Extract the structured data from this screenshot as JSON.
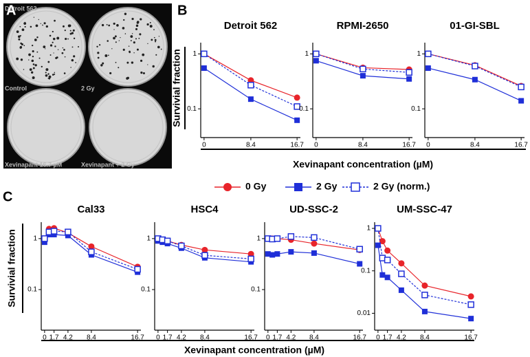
{
  "panel_labels": [
    "A",
    "B",
    "C"
  ],
  "panel_a": {
    "labels": [
      "Detroit 562",
      "Control",
      "2 Gy",
      "Xevinapant 16.7 µM",
      "Xevinapant + 2 Gy"
    ]
  },
  "figure": {
    "b_y_label": "Survivial fraction",
    "b_x_label": "Xevinapant concentration (µM)",
    "c_y_label": "Survivial fraction",
    "c_x_label": "Xevinapant concentration (µM)"
  },
  "chart_data": [
    {
      "type": "line",
      "title": "Detroit 562",
      "log_y": true,
      "x": [
        0,
        8.4,
        16.7
      ],
      "xlim": [
        -0.6,
        17.3
      ],
      "xticks": [
        0,
        8.4,
        16.7
      ],
      "ylim": [
        0.03,
        1.6
      ],
      "yticks": [
        1,
        0.1
      ],
      "series": [
        {
          "name": "0 Gy",
          "color": "#e8242a",
          "marker": "circle",
          "dashed": false,
          "values": [
            1,
            0.33,
            0.16
          ]
        },
        {
          "name": "2 Gy",
          "color": "#1f2fd8",
          "marker": "square",
          "dashed": false,
          "values": [
            0.55,
            0.15,
            0.062
          ]
        },
        {
          "name": "2 Gy (norm.)",
          "color": "#1f2fd8",
          "marker": "open-square",
          "dashed": true,
          "values": [
            1,
            0.27,
            0.11
          ]
        }
      ]
    },
    {
      "type": "line",
      "title": "RPMI-2650",
      "log_y": true,
      "x": [
        0,
        8.4,
        16.7
      ],
      "xlim": [
        -0.6,
        17.3
      ],
      "xticks": [
        0,
        8.4,
        16.7
      ],
      "ylim": [
        0.03,
        1.6
      ],
      "yticks": [
        1,
        0.1
      ],
      "series": [
        {
          "name": "0 Gy",
          "color": "#e8242a",
          "marker": "circle",
          "dashed": false,
          "values": [
            1,
            0.56,
            0.52
          ]
        },
        {
          "name": "2 Gy",
          "color": "#1f2fd8",
          "marker": "square",
          "dashed": false,
          "values": [
            0.75,
            0.4,
            0.35
          ]
        },
        {
          "name": "2 Gy (norm.)",
          "color": "#1f2fd8",
          "marker": "open-square",
          "dashed": true,
          "values": [
            1,
            0.53,
            0.46
          ]
        }
      ]
    },
    {
      "type": "line",
      "title": "01-GI-SBL",
      "log_y": true,
      "x": [
        0,
        8.4,
        16.7
      ],
      "xlim": [
        -0.6,
        17.3
      ],
      "xticks": [
        0,
        8.4,
        16.7
      ],
      "ylim": [
        0.03,
        1.6
      ],
      "yticks": [
        1,
        0.1
      ],
      "series": [
        {
          "name": "0 Gy",
          "color": "#e8242a",
          "marker": "circle",
          "dashed": false,
          "values": [
            1,
            0.62,
            0.26
          ]
        },
        {
          "name": "2 Gy",
          "color": "#1f2fd8",
          "marker": "square",
          "dashed": false,
          "values": [
            0.55,
            0.34,
            0.14
          ]
        },
        {
          "name": "2 Gy (norm.)",
          "color": "#1f2fd8",
          "marker": "open-square",
          "dashed": true,
          "values": [
            1,
            0.6,
            0.25
          ]
        }
      ]
    },
    {
      "type": "line",
      "title": "Cal33",
      "log_y": true,
      "x": [
        0,
        0.8,
        1.7,
        4.2,
        8.4,
        16.7
      ],
      "xlim": [
        -0.6,
        17.3
      ],
      "xticks": [
        0,
        1.7,
        4.2,
        8.4,
        16.7
      ],
      "ylim": [
        0.016,
        2.1
      ],
      "yticks": [
        1,
        0.1
      ],
      "series": [
        {
          "name": "0 Gy",
          "color": "#e8242a",
          "marker": "circle",
          "dashed": false,
          "values": [
            1,
            1.55,
            1.6,
            1.3,
            0.7,
            0.28
          ]
        },
        {
          "name": "2 Gy",
          "color": "#1f2fd8",
          "marker": "square",
          "dashed": false,
          "values": [
            0.85,
            1.2,
            1.2,
            1.15,
            0.48,
            0.22
          ]
        },
        {
          "name": "2 Gy (norm.)",
          "color": "#1f2fd8",
          "marker": "open-square",
          "dashed": true,
          "values": [
            1,
            1.35,
            1.4,
            1.35,
            0.55,
            0.25
          ]
        }
      ]
    },
    {
      "type": "line",
      "title": "HSC4",
      "log_y": true,
      "x": [
        0,
        0.8,
        1.7,
        4.2,
        8.4,
        16.7
      ],
      "xlim": [
        -0.6,
        17.3
      ],
      "xticks": [
        0,
        1.7,
        4.2,
        8.4,
        16.7
      ],
      "ylim": [
        0.016,
        2.1
      ],
      "yticks": [
        1,
        0.1
      ],
      "series": [
        {
          "name": "0 Gy",
          "color": "#e8242a",
          "marker": "circle",
          "dashed": false,
          "values": [
            1,
            0.95,
            0.9,
            0.75,
            0.6,
            0.5
          ]
        },
        {
          "name": "2 Gy",
          "color": "#1f2fd8",
          "marker": "square",
          "dashed": false,
          "values": [
            0.9,
            0.85,
            0.8,
            0.65,
            0.42,
            0.35
          ]
        },
        {
          "name": "2 Gy (norm.)",
          "color": "#1f2fd8",
          "marker": "open-square",
          "dashed": true,
          "values": [
            1,
            0.95,
            0.9,
            0.72,
            0.47,
            0.4
          ]
        }
      ]
    },
    {
      "type": "line",
      "title": "UD-SSC-2",
      "log_y": true,
      "x": [
        0,
        0.8,
        1.7,
        4.2,
        8.4,
        16.7
      ],
      "xlim": [
        -0.6,
        17.3
      ],
      "xticks": [
        0,
        1.7,
        4.2,
        8.4,
        16.7
      ],
      "ylim": [
        0.016,
        2.1
      ],
      "yticks": [
        1,
        0.1
      ],
      "series": [
        {
          "name": "0 Gy",
          "color": "#e8242a",
          "marker": "circle",
          "dashed": false,
          "values": [
            1,
            1,
            1,
            0.95,
            0.8,
            0.6
          ]
        },
        {
          "name": "2 Gy",
          "color": "#1f2fd8",
          "marker": "square",
          "dashed": false,
          "values": [
            0.5,
            0.48,
            0.5,
            0.55,
            0.52,
            0.32
          ]
        },
        {
          "name": "2 Gy (norm.)",
          "color": "#1f2fd8",
          "marker": "open-square",
          "dashed": true,
          "values": [
            1,
            0.98,
            1,
            1.1,
            1.05,
            0.62
          ]
        }
      ]
    },
    {
      "type": "line",
      "title": "UM-SSC-47",
      "log_y": true,
      "x": [
        0,
        0.8,
        1.7,
        4.2,
        8.4,
        16.7
      ],
      "xlim": [
        -0.6,
        17.3
      ],
      "xticks": [
        0,
        1.7,
        4.2,
        8.4,
        16.7
      ],
      "ylim": [
        0.004,
        1.4
      ],
      "yticks": [
        1,
        0.1,
        0.01
      ],
      "series": [
        {
          "name": "0 Gy",
          "color": "#e8242a",
          "marker": "circle",
          "dashed": false,
          "values": [
            1,
            0.5,
            0.3,
            0.15,
            0.045,
            0.025
          ]
        },
        {
          "name": "2 Gy",
          "color": "#1f2fd8",
          "marker": "square",
          "dashed": false,
          "values": [
            0.4,
            0.08,
            0.07,
            0.035,
            0.011,
            0.0075
          ]
        },
        {
          "name": "2 Gy (norm.)",
          "color": "#1f2fd8",
          "marker": "open-square",
          "dashed": true,
          "values": [
            1,
            0.2,
            0.18,
            0.085,
            0.027,
            0.016
          ]
        }
      ]
    }
  ]
}
